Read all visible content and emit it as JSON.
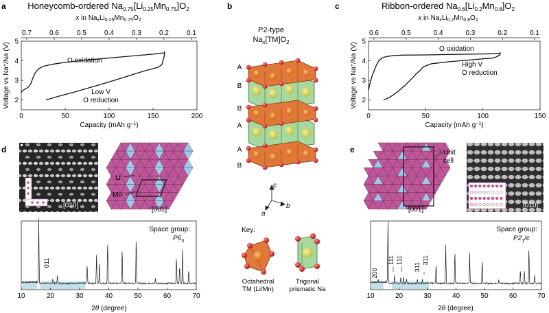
{
  "colors": {
    "na_green": "#a7d8a0",
    "tm_orange": "#e0783a",
    "oxygen_red": "#d22b2b",
    "li_blue": "#9ec9e8",
    "mn_magenta": "#c0579b",
    "band_blue": "#b9d9e6",
    "curve": "#111111"
  },
  "panel_a": {
    "letter": "a",
    "title": "Honeycomb-ordered Na0.75[Li0.25Mn0.75]O2",
    "top_axis_label": "x in NaxLi0.25Mn0.75O2",
    "top_ticks": [
      "0.7",
      "0.6",
      "0.5",
      "0.4",
      "0.3",
      "0.2",
      "0.1"
    ],
    "xlabel": "Capacity (mAh g−1)",
    "ylabel": "Voltage vs Na+/Na (V)",
    "annot_oxidation": "O oxidation",
    "annot_reduction_1": "Low V",
    "annot_reduction_2": "O reduction"
  },
  "panel_b": {
    "letter": "b",
    "title_1": "P2-type",
    "title_2": "Nax[TM]O2",
    "layers": [
      "A",
      "B",
      "B",
      "A",
      "A",
      "B"
    ],
    "axis_c": "c",
    "axis_a": "a",
    "axis_b": "b",
    "key_label": "Key:",
    "key_octa_1": "Octahedral",
    "key_octa_2": "TM (Li/Mn)",
    "key_prism_1": "Trigonal",
    "key_prism_2": "prismatic Na"
  },
  "panel_c": {
    "letter": "c",
    "title": "Ribbon-ordered Na0.6[Li0.2Mn0.8]O2",
    "top_axis_label": "x in NaxLi0.2Mn0.8O2",
    "top_ticks": [
      "0.6",
      "0.5",
      "0.4",
      "0.3",
      "0.2",
      "0.1"
    ],
    "xlabel": "Capacity (mAh g−1)",
    "ylabel": "Voltage vs Na+/Na (V)",
    "annot_oxidation": "O oxidation",
    "annot_reduction_1": "High V",
    "annot_reduction_2": "O reduction"
  },
  "panel_d": {
    "letter": "d",
    "zone_label": "[010]",
    "lattice_label": "[001]",
    "li_label": "Li",
    "mn_label": "Mn",
    "space_group_label": "Space group:",
    "space_group": "P63",
    "peak_label": "011",
    "xlabel": "2θ (degree)"
  },
  "panel_e": {
    "letter": "e",
    "zone_label": "[010]",
    "lattice_label": "[001]",
    "unit_cell_1": "Unit",
    "unit_cell_2": "cell",
    "space_group_label": "Space group:",
    "space_group": "P21/c",
    "peak_labels": [
      "200",
      "111",
      "111",
      "311",
      "311"
    ],
    "xlabel": "2θ (degree)"
  },
  "chart_data": [
    {
      "type": "line",
      "title": "Honeycomb-ordered Na0.75[Li0.25Mn0.75]O2",
      "xlabel": "Capacity (mAh g−1)",
      "ylabel": "Voltage vs Na+/Na (V)",
      "xlim": [
        0,
        200
      ],
      "ylim": [
        1.5,
        5
      ],
      "xticks": [
        0,
        50,
        100,
        150,
        200
      ],
      "yticks": [
        2,
        3,
        4,
        5
      ],
      "series": [
        {
          "x": [
            0,
            2,
            6,
            9,
            11,
            13,
            16,
            20,
            25,
            35,
            50,
            70,
            90,
            110,
            130,
            150,
            158,
            163
          ],
          "y": [
            2.4,
            2.5,
            2.6,
            2.7,
            2.85,
            3.1,
            3.4,
            3.6,
            3.72,
            3.82,
            3.92,
            4.02,
            4.1,
            4.18,
            4.26,
            4.34,
            4.38,
            4.4
          ]
        },
        {
          "x": [
            163,
            163,
            162,
            161,
            160,
            155,
            140,
            120,
            100,
            80,
            60,
            40,
            28
          ],
          "y": [
            4.48,
            4.3,
            4.1,
            3.95,
            3.8,
            3.66,
            3.48,
            3.2,
            2.92,
            2.66,
            2.4,
            2.16,
            2.0
          ]
        }
      ]
    },
    {
      "type": "line",
      "title": "Ribbon-ordered Na0.6[Li0.2Mn0.8]O2",
      "xlabel": "Capacity (mAh g−1)",
      "ylabel": "Voltage vs Na+/Na (V)",
      "xlim": [
        0,
        150
      ],
      "ylim": [
        1.5,
        5
      ],
      "xticks": [
        0,
        50,
        100,
        150
      ],
      "yticks": [
        2,
        3,
        4,
        5
      ],
      "series": [
        {
          "x": [
            0,
            1,
            3,
            5,
            7,
            9,
            12,
            16,
            22,
            30,
            50,
            70,
            90,
            110,
            115
          ],
          "y": [
            2.5,
            2.8,
            3.2,
            3.5,
            3.8,
            4.0,
            4.15,
            4.22,
            4.27,
            4.29,
            4.3,
            4.32,
            4.34,
            4.36,
            4.38
          ]
        },
        {
          "x": [
            115,
            115,
            110,
            90,
            70,
            55,
            48,
            45,
            42,
            38,
            32,
            25,
            18,
            13
          ],
          "y": [
            4.45,
            4.3,
            4.15,
            4.05,
            3.95,
            3.85,
            3.7,
            3.5,
            3.35,
            3.1,
            2.75,
            2.4,
            2.12,
            2.0
          ]
        }
      ]
    },
    {
      "type": "line",
      "title": "",
      "xlabel": "2θ (degree)",
      "ylabel": "",
      "xlim": [
        10,
        70
      ],
      "xticks": [
        10,
        20,
        30,
        40,
        50,
        60,
        70
      ],
      "background": 0.1,
      "peaks": [
        {
          "x": 16.0,
          "h": 1.0
        },
        {
          "x": 20.8,
          "h": 0.08
        },
        {
          "x": 22.4,
          "h": 0.14
        },
        {
          "x": 32.6,
          "h": 0.3
        },
        {
          "x": 35.8,
          "h": 0.45
        },
        {
          "x": 36.8,
          "h": 0.35
        },
        {
          "x": 39.6,
          "h": 0.68
        },
        {
          "x": 44.6,
          "h": 0.55
        },
        {
          "x": 49.4,
          "h": 0.72
        },
        {
          "x": 56.0,
          "h": 0.08
        },
        {
          "x": 63.2,
          "h": 0.43
        },
        {
          "x": 64.3,
          "h": 0.28
        },
        {
          "x": 65.3,
          "h": 0.56
        },
        {
          "x": 67.4,
          "h": 0.2
        }
      ],
      "excluded_bands": [
        [
          10,
          15.5
        ],
        [
          16.5,
          32
        ]
      ]
    },
    {
      "type": "line",
      "title": "",
      "xlabel": "2θ (degree)",
      "ylabel": "",
      "xlim": [
        10,
        70
      ],
      "xticks": [
        10,
        20,
        30,
        40,
        50,
        60,
        70
      ],
      "background": 0.1,
      "peaks": [
        {
          "x": 12.6,
          "h": 0.04
        },
        {
          "x": 16.1,
          "h": 1.0
        },
        {
          "x": 18.4,
          "h": 0.12
        },
        {
          "x": 20.6,
          "h": 0.1
        },
        {
          "x": 21.6,
          "h": 0.1
        },
        {
          "x": 22.6,
          "h": 0.08
        },
        {
          "x": 26.4,
          "h": 0.07
        },
        {
          "x": 28.2,
          "h": 0.08
        },
        {
          "x": 33.0,
          "h": 0.32
        },
        {
          "x": 36.4,
          "h": 0.6
        },
        {
          "x": 39.6,
          "h": 0.52
        },
        {
          "x": 44.8,
          "h": 0.5
        },
        {
          "x": 49.2,
          "h": 0.38
        },
        {
          "x": 55.0,
          "h": 0.06
        },
        {
          "x": 62.6,
          "h": 0.22
        },
        {
          "x": 64.0,
          "h": 0.2
        },
        {
          "x": 65.6,
          "h": 0.58
        },
        {
          "x": 67.6,
          "h": 0.12
        }
      ],
      "excluded_bands": [
        [
          10,
          14.5
        ],
        [
          17.5,
          30.5
        ]
      ]
    }
  ]
}
